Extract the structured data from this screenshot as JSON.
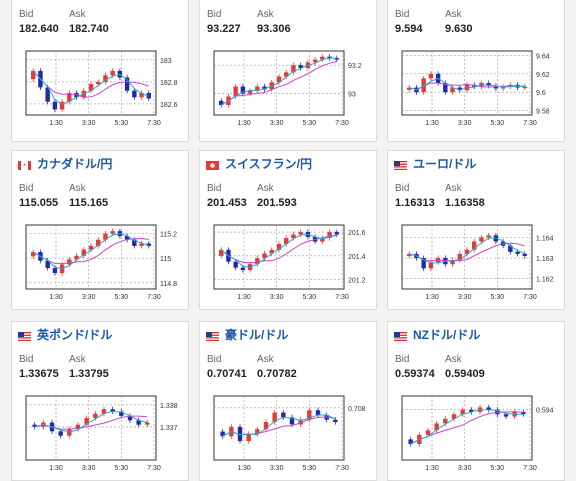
{
  "labels": {
    "bid": "Bid",
    "ask": "Ask"
  },
  "colors": {
    "up": "#e53935",
    "down": "#1e2aa8",
    "ma_short": "#26a9c9",
    "ma_long": "#cc44cc",
    "title": "#1a57a6"
  },
  "cards": [
    {
      "title": "",
      "flag": "",
      "bid": "182.640",
      "ask": "182.740",
      "chart_data": {
        "type": "candlestick",
        "y_ticks": [
          "183",
          "182.8",
          "182.6"
        ],
        "x_ticks": [
          "1:30",
          "3:30",
          "5:30",
          "7:30"
        ],
        "ylim": [
          182.5,
          183.08
        ],
        "close": [
          182.9,
          182.75,
          182.62,
          182.55,
          182.62,
          182.7,
          182.66,
          182.72,
          182.78,
          182.8,
          182.86,
          182.9,
          182.84,
          182.72,
          182.66,
          182.7,
          182.65
        ]
      }
    },
    {
      "title": "",
      "flag": "",
      "bid": "93.227",
      "ask": "93.306",
      "chart_data": {
        "type": "candlestick",
        "y_ticks": [
          "93.2",
          "93"
        ],
        "x_ticks": [
          "1:30",
          "3:30",
          "5:30",
          "7:30"
        ],
        "ylim": [
          92.85,
          93.3
        ],
        "close": [
          92.92,
          92.98,
          93.05,
          93.0,
          93.02,
          93.05,
          93.03,
          93.08,
          93.12,
          93.15,
          93.2,
          93.18,
          93.22,
          93.24,
          93.26,
          93.25,
          93.24
        ]
      }
    },
    {
      "title": "",
      "flag": "",
      "bid": "9.594",
      "ask": "9.630",
      "chart_data": {
        "type": "candlestick",
        "y_ticks": [
          "9.64",
          "9.62",
          "9.6",
          "9.58"
        ],
        "x_ticks": [
          "1:30",
          "3:30",
          "5:30",
          "7:30"
        ],
        "ylim": [
          9.575,
          9.645
        ],
        "close": [
          9.605,
          9.6,
          9.615,
          9.62,
          9.61,
          9.6,
          9.605,
          9.602,
          9.608,
          9.606,
          9.61,
          9.607,
          9.604,
          9.606,
          9.608,
          9.605,
          9.606
        ]
      }
    },
    {
      "title": "カナダドル/円",
      "flag": "ca",
      "bid": "115.055",
      "ask": "115.165",
      "chart_data": {
        "type": "candlestick",
        "y_ticks": [
          "115.2",
          "115",
          "114.8"
        ],
        "x_ticks": [
          "1:30",
          "3:30",
          "5:30",
          "7:30"
        ],
        "ylim": [
          114.75,
          115.27
        ],
        "close": [
          115.05,
          114.98,
          114.92,
          114.88,
          114.95,
          114.99,
          115.02,
          115.07,
          115.1,
          115.15,
          115.2,
          115.22,
          115.18,
          115.15,
          115.1,
          115.12,
          115.1
        ]
      }
    },
    {
      "title": "スイスフラン/円",
      "flag": "ch",
      "bid": "201.453",
      "ask": "201.593",
      "chart_data": {
        "type": "candlestick",
        "y_ticks": [
          "201.6",
          "201.4",
          "201.2"
        ],
        "x_ticks": [
          "1:30",
          "3:30",
          "5:30",
          "7:30"
        ],
        "ylim": [
          201.12,
          201.66
        ],
        "close": [
          201.45,
          201.35,
          201.3,
          201.28,
          201.33,
          201.38,
          201.42,
          201.45,
          201.5,
          201.55,
          201.58,
          201.6,
          201.56,
          201.52,
          201.55,
          201.6,
          201.58
        ]
      }
    },
    {
      "title": "ユーロ/ドル",
      "flag": "us",
      "bid": "1.16313",
      "ask": "1.16358",
      "chart_data": {
        "type": "candlestick",
        "y_ticks": [
          "1.164",
          "1.163",
          "1.162"
        ],
        "x_ticks": [
          "1:30",
          "3:30",
          "5:30",
          "7:30"
        ],
        "ylim": [
          1.1615,
          1.1646
        ],
        "close": [
          1.1632,
          1.163,
          1.1625,
          1.1628,
          1.163,
          1.1627,
          1.1629,
          1.1632,
          1.1634,
          1.1638,
          1.164,
          1.1641,
          1.1638,
          1.1636,
          1.1633,
          1.1632,
          1.1631
        ]
      }
    },
    {
      "title": "英ポンド/ドル",
      "flag": "us",
      "bid": "1.33675",
      "ask": "1.33795",
      "chart_data": {
        "type": "candlestick",
        "y_ticks": [
          "1.338",
          "1.337"
        ],
        "x_ticks": [
          "1:30",
          "3:30",
          "5:30",
          "7:30"
        ],
        "ylim": [
          1.3355,
          1.3384
        ],
        "close": [
          1.337,
          1.3372,
          1.3368,
          1.3366,
          1.3369,
          1.3371,
          1.3374,
          1.3376,
          1.3378,
          1.3377,
          1.3375,
          1.3373,
          1.3371,
          1.3372
        ]
      }
    },
    {
      "title": "豪ドル/ドル",
      "flag": "us",
      "bid": "0.70741",
      "ask": "0.70782",
      "chart_data": {
        "type": "candlestick",
        "y_ticks": [
          "0.708"
        ],
        "x_ticks": [
          "1:30",
          "3:30",
          "5:30",
          "7:30"
        ],
        "ylim": [
          0.7058,
          0.7085
        ],
        "close": [
          0.7068,
          0.7072,
          0.7066,
          0.7069,
          0.7071,
          0.7074,
          0.7078,
          0.7076,
          0.7073,
          0.7075,
          0.7079,
          0.7077,
          0.7075,
          0.7074
        ]
      }
    },
    {
      "title": "NZドル/ドル",
      "flag": "us",
      "bid": "0.59374",
      "ask": "0.59409",
      "chart_data": {
        "type": "candlestick",
        "y_ticks": [
          "0.594"
        ],
        "x_ticks": [
          "1:30",
          "3:30",
          "5:30",
          "7:30"
        ],
        "ylim": [
          0.5918,
          0.5946
        ],
        "close": [
          0.5925,
          0.5929,
          0.5931,
          0.5934,
          0.5936,
          0.5938,
          0.594,
          0.5939,
          0.5941,
          0.594,
          0.5938,
          0.5937,
          0.5939,
          0.5938
        ]
      }
    }
  ]
}
